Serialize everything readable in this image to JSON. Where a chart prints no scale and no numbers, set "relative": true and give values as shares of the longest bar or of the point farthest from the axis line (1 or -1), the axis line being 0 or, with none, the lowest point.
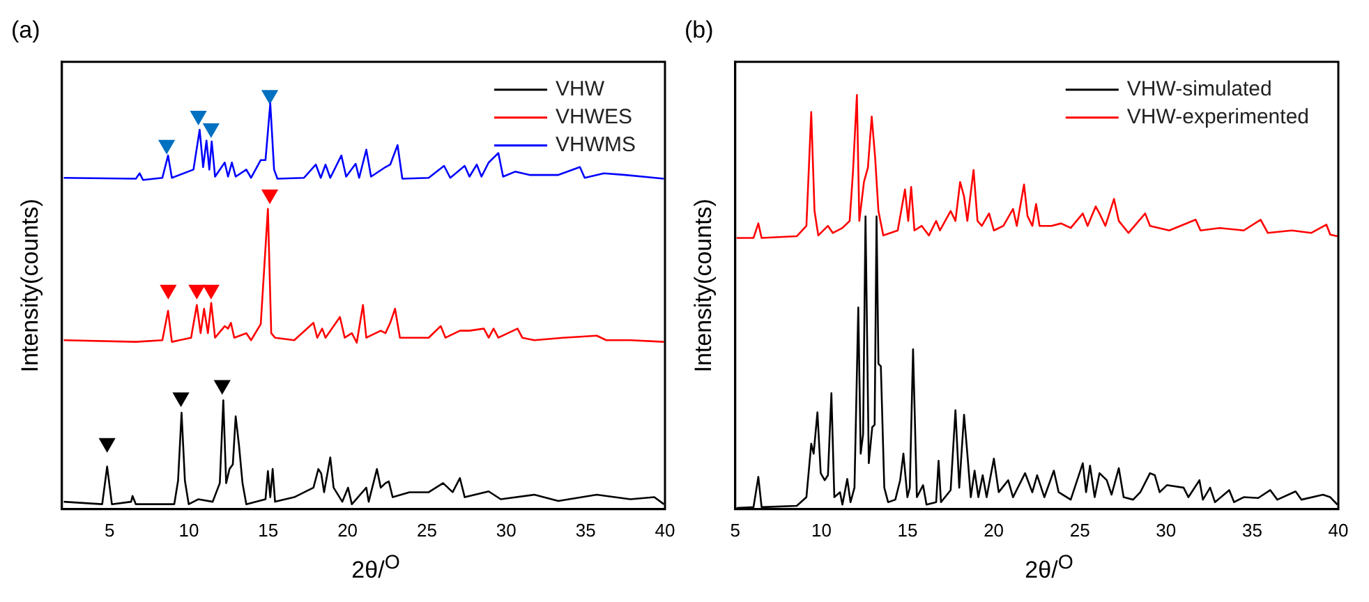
{
  "chart_data": [
    {
      "type": "line",
      "title": "(a)",
      "xlabel": "2θ/$^{O}$",
      "ylabel": "Intensity(counts)",
      "relative": true,
      "xlim": [
        2,
        40
      ],
      "xticks": [
        5,
        10,
        15,
        20,
        25,
        30,
        35,
        40
      ],
      "legend": "top right",
      "marker": "none",
      "grid": false,
      "series": [
        {
          "name": "VHW",
          "color": "#000000",
          "x": [
            2.12,
            4.54,
            4.85,
            5.15,
            6.36,
            6.45,
            6.66,
            9.08,
            9.32,
            9.54,
            9.75,
            9.99,
            10.59,
            11.5,
            11.95,
            12.17,
            12.35,
            12.56,
            12.77,
            12.95,
            13.16,
            13.38,
            13.62,
            14.83,
            14.98,
            15.13,
            15.28,
            15.43,
            16.64,
            17.85,
            18.16,
            18.34,
            18.52,
            18.91,
            19.12,
            19.67,
            20.03,
            20.27,
            21.18,
            21.33,
            21.85,
            22.09,
            22.39,
            22.6,
            22.84,
            23.9,
            25.11,
            26.02,
            26.62,
            27.08,
            27.38,
            28.89,
            29.65,
            31.77,
            33.28,
            35.7,
            37.82,
            39.33,
            39.93
          ],
          "values": [
            0.018,
            0.012,
            0.103,
            0.012,
            0.018,
            0.032,
            0.012,
            0.012,
            0.069,
            0.233,
            0.069,
            0.012,
            0.024,
            0.018,
            0.063,
            0.263,
            0.063,
            0.097,
            0.108,
            0.224,
            0.154,
            0.063,
            0.012,
            0.024,
            0.092,
            0.029,
            0.097,
            0.018,
            0.029,
            0.052,
            0.097,
            0.086,
            0.041,
            0.125,
            0.052,
            0.018,
            0.052,
            0.012,
            0.052,
            0.018,
            0.097,
            0.052,
            0.063,
            0.067,
            0.029,
            0.041,
            0.041,
            0.063,
            0.041,
            0.075,
            0.029,
            0.043,
            0.024,
            0.035,
            0.02,
            0.035,
            0.024,
            0.029,
            0.012
          ]
        },
        {
          "name": "VHWES",
          "color": "#ff0000",
          "x": [
            2.12,
            6.66,
            8.33,
            8.69,
            8.93,
            10.14,
            10.5,
            10.74,
            10.96,
            11.2,
            11.41,
            11.65,
            12.26,
            12.47,
            12.65,
            12.86,
            13.62,
            13.92,
            14.53,
            14.98,
            15.19,
            15.43,
            16.64,
            17.85,
            18.09,
            18.4,
            18.61,
            19.52,
            19.82,
            20.27,
            20.58,
            20.97,
            21.18,
            22.09,
            22.39,
            22.69,
            22.99,
            23.3,
            23.9,
            25.11,
            25.87,
            26.17,
            27.08,
            27.68,
            28.59,
            28.89,
            29.2,
            29.5,
            30.71,
            31.01,
            31.77,
            33.58,
            34.49,
            35.7,
            36.3,
            37.82,
            39.93
          ],
          "values": [
            0.408,
            0.404,
            0.408,
            0.479,
            0.404,
            0.414,
            0.493,
            0.425,
            0.484,
            0.425,
            0.498,
            0.414,
            0.442,
            0.436,
            0.45,
            0.414,
            0.425,
            0.408,
            0.447,
            0.725,
            0.425,
            0.414,
            0.408,
            0.45,
            0.414,
            0.436,
            0.414,
            0.464,
            0.414,
            0.425,
            0.402,
            0.493,
            0.414,
            0.431,
            0.425,
            0.45,
            0.484,
            0.414,
            0.414,
            0.414,
            0.442,
            0.414,
            0.431,
            0.431,
            0.436,
            0.414,
            0.436,
            0.414,
            0.436,
            0.414,
            0.408,
            0.414,
            0.416,
            0.419,
            0.408,
            0.408,
            0.404
          ]
        },
        {
          "name": "VHWMS",
          "color": "#0000ff",
          "x": [
            2.12,
            6.66,
            6.9,
            7.11,
            8.33,
            8.69,
            8.93,
            10.29,
            10.68,
            10.9,
            11.11,
            11.29,
            11.44,
            11.65,
            12.26,
            12.47,
            12.71,
            12.95,
            13.62,
            13.92,
            14.53,
            14.83,
            15.13,
            15.37,
            15.58,
            17.25,
            18.0,
            18.31,
            18.61,
            18.91,
            19.61,
            19.91,
            20.51,
            20.73,
            21.18,
            21.48,
            22.39,
            22.69,
            23.15,
            23.45,
            25.11,
            26.08,
            26.47,
            27.38,
            27.68,
            28.14,
            28.44,
            28.89,
            29.5,
            29.8,
            30.56,
            31.46,
            33.28,
            34.64,
            34.94,
            36.15,
            37.51,
            39.93
          ],
          "values": [
            0.8,
            0.798,
            0.811,
            0.795,
            0.8,
            0.854,
            0.8,
            0.82,
            0.916,
            0.826,
            0.89,
            0.82,
            0.888,
            0.803,
            0.837,
            0.803,
            0.837,
            0.803,
            0.82,
            0.8,
            0.843,
            0.843,
            0.98,
            0.82,
            0.798,
            0.8,
            0.832,
            0.8,
            0.832,
            0.8,
            0.854,
            0.803,
            0.834,
            0.8,
            0.868,
            0.803,
            0.826,
            0.832,
            0.879,
            0.798,
            0.8,
            0.829,
            0.8,
            0.829,
            0.803,
            0.832,
            0.803,
            0.837,
            0.86,
            0.803,
            0.815,
            0.807,
            0.807,
            0.826,
            0.8,
            0.811,
            0.807,
            0.798
          ]
        },
        {
          "type": "scatter",
          "marker": "triangle",
          "color": "#0070c0",
          "x": [
            8.6,
            10.6,
            11.4,
            15.1
          ],
          "values": [
            0.88,
            0.95,
            0.92,
            1
          ]
        },
        {
          "type": "scatter",
          "marker": "triangle",
          "color": "#ff0000",
          "x": [
            8.7,
            10.5,
            11.4,
            15.1
          ],
          "values": [
            0.53,
            0.53,
            0.53,
            0.76
          ]
        },
        {
          "type": "scatter",
          "marker": "triangle",
          "color": "#000000",
          "x": [
            4.85,
            9.5,
            12.1
          ],
          "values": [
            0.16,
            0.27,
            0.3
          ]
        }
      ]
    },
    {
      "type": "line",
      "title": "(b)",
      "xlabel": "2θ/$^{O}$",
      "ylabel": "Intensity(counts)",
      "relative": true,
      "xlim": [
        5,
        40
      ],
      "xticks": [
        5,
        10,
        15,
        20,
        25,
        30,
        35,
        40
      ],
      "legend": "top right",
      "marker": "none",
      "grid": false,
      "series": [
        {
          "name": "VHW-simulated",
          "color": "#000000",
          "x": [
            5.08,
            6.06,
            6.34,
            6.53,
            8.57,
            9.13,
            9.41,
            9.55,
            9.77,
            9.96,
            10.19,
            10.38,
            10.58,
            10.75,
            11.08,
            11.22,
            11.5,
            11.69,
            11.92,
            12.14,
            12.28,
            12.42,
            12.56,
            12.75,
            12.95,
            13.09,
            13.2,
            13.31,
            13.45,
            13.65,
            13.87,
            14.29,
            14.57,
            14.76,
            14.99,
            15.13,
            15.32,
            15.54,
            15.9,
            16.1,
            16.66,
            16.8,
            16.94,
            17.5,
            17.78,
            18.0,
            18.28,
            18.47,
            18.67,
            18.89,
            19.11,
            19.36,
            19.59,
            20.01,
            20.29,
            20.84,
            21.12,
            21.82,
            22.24,
            22.52,
            22.94,
            23.49,
            23.77,
            24.47,
            25.17,
            25.36,
            25.59,
            25.86,
            26.14,
            26.56,
            26.84,
            27.26,
            27.54,
            28.09,
            28.51,
            29.07,
            29.35,
            29.63,
            30.05,
            31.02,
            31.3,
            31.94,
            32.14,
            32.56,
            32.84,
            33.67,
            33.95,
            34.51,
            35.35,
            36.05,
            36.46,
            37.52,
            37.86,
            39.11,
            39.53,
            39.95
          ],
          "values": [
            0.003,
            0.005,
            0.078,
            0.005,
            0.008,
            0.029,
            0.158,
            0.134,
            0.234,
            0.087,
            0.07,
            0.082,
            0.28,
            0.029,
            0.041,
            0.011,
            0.073,
            0.017,
            0.052,
            0.487,
            0.134,
            0.181,
            0.707,
            0.111,
            0.198,
            0.204,
            0.707,
            0.351,
            0.345,
            0.052,
            0.017,
            0.023,
            0.07,
            0.134,
            0.029,
            0.052,
            0.386,
            0.029,
            0.058,
            0.011,
            0.017,
            0.117,
            0.017,
            0.046,
            0.239,
            0.052,
            0.228,
            0.134,
            0.029,
            0.093,
            0.029,
            0.082,
            0.029,
            0.122,
            0.041,
            0.07,
            0.029,
            0.087,
            0.041,
            0.082,
            0.029,
            0.093,
            0.041,
            0.023,
            0.111,
            0.041,
            0.105,
            0.029,
            0.087,
            0.07,
            0.035,
            0.099,
            0.029,
            0.023,
            0.041,
            0.087,
            0.082,
            0.041,
            0.058,
            0.052,
            0.029,
            0.07,
            0.023,
            0.052,
            0.017,
            0.046,
            0.017,
            0.029,
            0.027,
            0.046,
            0.023,
            0.043,
            0.023,
            0.035,
            0.029,
            0.011
          ]
        },
        {
          "name": "VHW-experimented",
          "color": "#ff0000",
          "x": [
            5.08,
            6.06,
            6.34,
            6.53,
            8.57,
            9.13,
            9.41,
            9.6,
            9.82,
            10.38,
            10.66,
            11.22,
            11.64,
            11.83,
            12.06,
            12.2,
            12.47,
            12.7,
            12.92,
            13.12,
            13.31,
            13.59,
            14.43,
            14.85,
            15.04,
            15.21,
            15.4,
            15.82,
            16.24,
            16.66,
            16.88,
            17.5,
            17.78,
            18.05,
            18.28,
            18.47,
            18.83,
            19.06,
            19.31,
            19.73,
            20.01,
            20.56,
            21.12,
            21.34,
            21.76,
            21.96,
            22.24,
            22.46,
            22.66,
            23.35,
            23.91,
            24.47,
            25.17,
            25.45,
            25.92,
            26.14,
            26.48,
            26.98,
            27.26,
            27.82,
            28.79,
            29.07,
            30.19,
            31.72,
            32.0,
            33.11,
            34.51,
            35.49,
            35.91,
            37.3,
            38.42,
            39.31,
            39.53,
            39.95
          ],
          "values": [
            0.655,
            0.655,
            0.69,
            0.655,
            0.659,
            0.684,
            0.959,
            0.72,
            0.661,
            0.684,
            0.667,
            0.679,
            0.696,
            0.813,
            1.0,
            0.696,
            0.79,
            0.825,
            0.948,
            0.848,
            0.72,
            0.661,
            0.673,
            0.772,
            0.696,
            0.778,
            0.673,
            0.684,
            0.661,
            0.696,
            0.673,
            0.72,
            0.696,
            0.79,
            0.755,
            0.696,
            0.819,
            0.696,
            0.684,
            0.714,
            0.673,
            0.684,
            0.725,
            0.684,
            0.784,
            0.708,
            0.684,
            0.737,
            0.684,
            0.684,
            0.69,
            0.679,
            0.714,
            0.684,
            0.731,
            0.714,
            0.684,
            0.749,
            0.696,
            0.667,
            0.714,
            0.684,
            0.673,
            0.699,
            0.673,
            0.679,
            0.673,
            0.699,
            0.667,
            0.673,
            0.667,
            0.687,
            0.663,
            0.659
          ]
        }
      ]
    }
  ]
}
